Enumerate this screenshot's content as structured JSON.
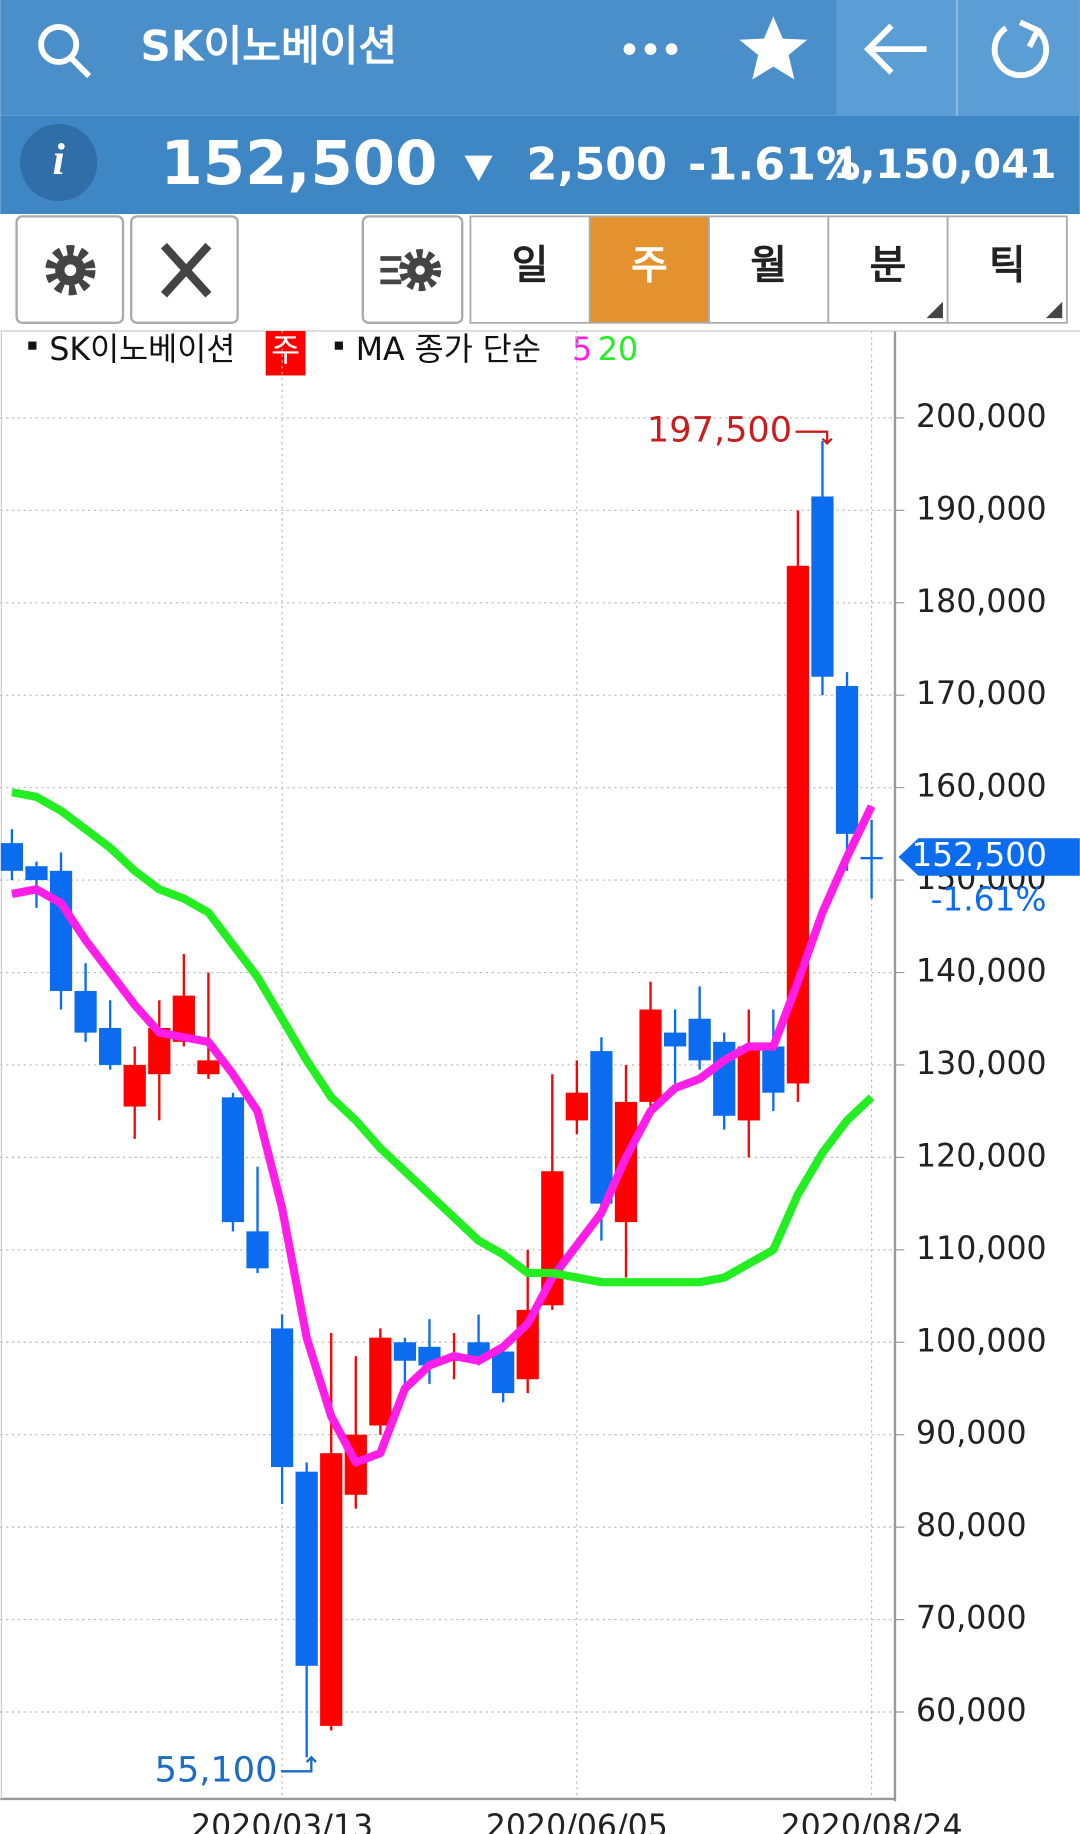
{
  "header": {
    "title": "SK이노베이션"
  },
  "quote": {
    "info": "i",
    "price": "152,500",
    "change": "2,500",
    "change_pct": "-1.61%",
    "volume": "1,150,041"
  },
  "tabs": {
    "items": [
      "일",
      "주",
      "월",
      "분",
      "틱"
    ],
    "active": 1
  },
  "chart_data": {
    "type": "candlestick",
    "categories": [
      null,
      null,
      null,
      null,
      null,
      null,
      null,
      null,
      null,
      null,
      null,
      "2020/03/13",
      null,
      null,
      null,
      null,
      null,
      null,
      null,
      null,
      null,
      null,
      null,
      "2020/06/05",
      null,
      null,
      null,
      null,
      null,
      null,
      null,
      null,
      null,
      null,
      null,
      "2020/08/24"
    ],
    "series": [
      {
        "name": "SK이노베이션",
        "type": "candlestick",
        "up_color": "#ff0000",
        "down_color": "#0b6cf0",
        "open": [
          154000,
          151500,
          151000,
          138000,
          134000,
          125500,
          129000,
          132500,
          129000,
          126500,
          112000,
          101500,
          86000,
          58500,
          83500,
          91000,
          100000,
          99500,
          98000,
          100000,
          99000,
          96000,
          104000,
          124000,
          131500,
          113000,
          126000,
          133500,
          135000,
          132500,
          124000,
          132000,
          128000,
          191500,
          171000,
          152500
        ],
        "high": [
          155500,
          152000,
          153000,
          141000,
          137000,
          132000,
          137000,
          142000,
          140000,
          127000,
          119000,
          103000,
          87000,
          101000,
          98500,
          101500,
          100500,
          102500,
          101000,
          103000,
          99500,
          110000,
          129000,
          130500,
          133000,
          130000,
          139000,
          136000,
          138500,
          133500,
          136000,
          136000,
          190000,
          197500,
          172500,
          156500
        ],
        "low": [
          150000,
          147000,
          136000,
          132500,
          129500,
          122000,
          124000,
          132000,
          128500,
          112000,
          107500,
          82500,
          55100,
          58000,
          82000,
          90000,
          95000,
          95500,
          96000,
          97500,
          93500,
          94500,
          103500,
          122500,
          111000,
          107000,
          125500,
          128000,
          129500,
          123000,
          120000,
          125000,
          126000,
          170000,
          151000,
          148000
        ],
        "close": [
          151000,
          150000,
          138000,
          133500,
          130000,
          130000,
          134000,
          137500,
          130500,
          113000,
          108000,
          86500,
          65000,
          88000,
          90000,
          100500,
          98000,
          97500,
          98500,
          98500,
          94500,
          103500,
          118500,
          127000,
          115000,
          126000,
          136000,
          132000,
          130500,
          124500,
          132000,
          127000,
          184000,
          172000,
          155000,
          152500
        ]
      },
      {
        "name": "5",
        "type": "line",
        "color": "#ff1ee8",
        "values": [
          148500,
          149000,
          147500,
          143500,
          140000,
          136500,
          133500,
          133000,
          132500,
          129000,
          125000,
          114500,
          100500,
          92000,
          87000,
          88000,
          95000,
          97500,
          98500,
          98000,
          99500,
          102000,
          107000,
          110500,
          114000,
          120000,
          125000,
          127500,
          128500,
          130500,
          132000,
          132000,
          139000,
          146500,
          152500,
          158000
        ]
      },
      {
        "name": "20",
        "type": "line",
        "color": "#22ee22",
        "values": [
          159500,
          159000,
          157500,
          155500,
          153500,
          151000,
          149000,
          148000,
          146500,
          143000,
          139500,
          135000,
          130500,
          126500,
          124000,
          121000,
          118500,
          116000,
          113500,
          111000,
          109500,
          107500,
          107500,
          107000,
          106500,
          106500,
          106500,
          106500,
          106500,
          107000,
          108500,
          110000,
          116000,
          120500,
          124000,
          126500
        ]
      }
    ],
    "legend": {
      "period": "주",
      "ma_label": "MA 종가 단순"
    },
    "ylim": [
      50600,
      209400
    ],
    "yticks": [
      {
        "value": 60000,
        "label": "60,000"
      },
      {
        "value": 70000,
        "label": "70,000"
      },
      {
        "value": 80000,
        "label": "80,000"
      },
      {
        "value": 90000,
        "label": "90,000"
      },
      {
        "value": 100000,
        "label": "100,000"
      },
      {
        "value": 110000,
        "label": "110,000"
      },
      {
        "value": 120000,
        "label": "120,000"
      },
      {
        "value": 130000,
        "label": "130,000"
      },
      {
        "value": 140000,
        "label": "140,000"
      },
      {
        "value": 150000,
        "label": "150,000"
      },
      {
        "value": 160000,
        "label": "160,000"
      },
      {
        "value": 170000,
        "label": "170,000"
      },
      {
        "value": 180000,
        "label": "180,000"
      },
      {
        "value": 190000,
        "label": "190,000"
      },
      {
        "value": 200000,
        "label": "200,000"
      }
    ],
    "grid": true,
    "max_marker": {
      "value": 197500,
      "label": "197,500"
    },
    "min_marker": {
      "value": 55100,
      "label": "55,100"
    },
    "last_marker": {
      "value": 152500,
      "label": "152,500",
      "change": "-1.61%"
    }
  }
}
